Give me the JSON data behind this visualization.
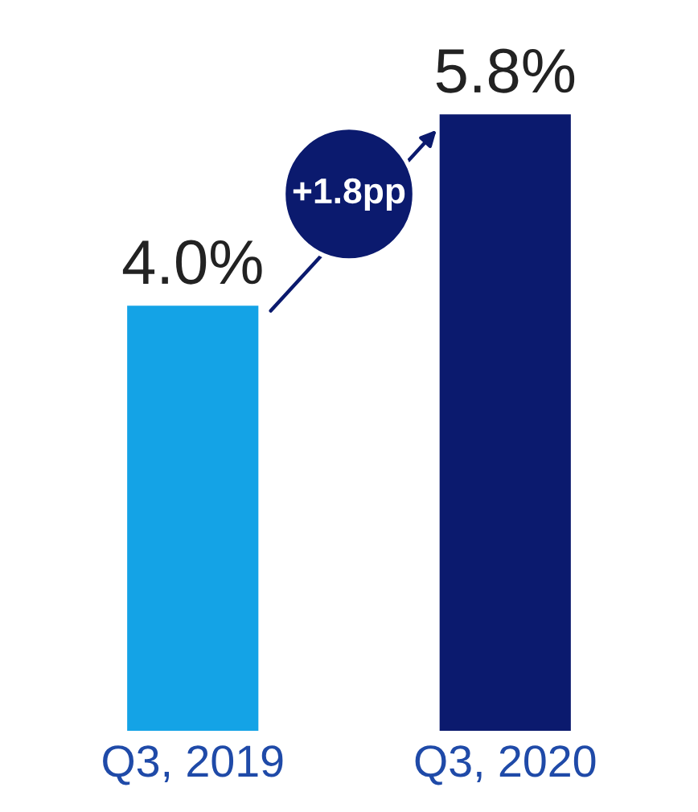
{
  "chart_data": {
    "type": "bar",
    "categories": [
      "Q3, 2019",
      "Q3, 2020"
    ],
    "values": [
      4.0,
      5.8
    ],
    "colors": [
      "#14a3e6",
      "#0b1a6e"
    ],
    "value_labels": [
      "4.0%",
      "5.8%"
    ],
    "annotations": [
      "+1.8pp"
    ],
    "grid": false,
    "legend": false
  }
}
